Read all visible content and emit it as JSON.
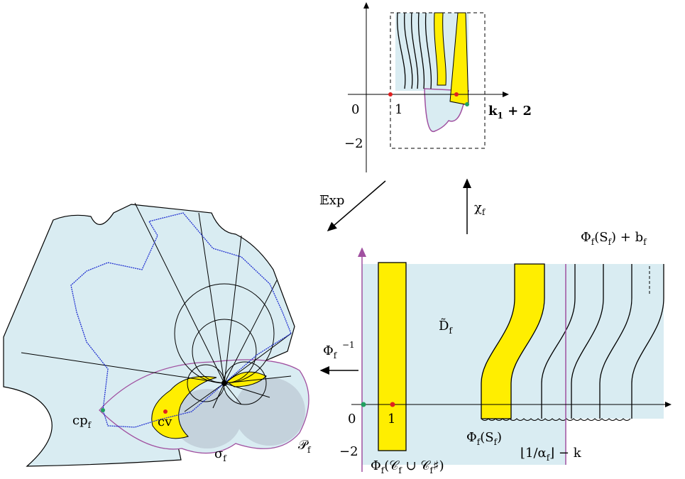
{
  "top_panel": {
    "origin": "0",
    "one": "1",
    "minus_two": "−2",
    "k_label": [
      "k",
      "1",
      " + 2"
    ]
  },
  "arrows": {
    "exp": "𝔼xp",
    "chi": [
      "χ",
      "f"
    ],
    "phi_inv": [
      "Φ",
      "f"
    ],
    "phi_inv_sup": "−1"
  },
  "bottom_panel": {
    "phi_s_plus_b": [
      "Φ",
      "f",
      "(S",
      "f",
      ") + b",
      "f"
    ],
    "domain": [
      "D̃",
      "f"
    ],
    "origin": "0",
    "one": "1",
    "minus_two": "−2",
    "phi_s": [
      "Φ",
      "f",
      "(S",
      "f",
      ")"
    ],
    "floor_label": [
      "⌊1/α",
      "f",
      "⌋ − k"
    ],
    "phi_c": [
      "Φ",
      "f",
      "(𝒞",
      "f",
      " ∪ 𝒞",
      "f",
      "♯)"
    ]
  },
  "left_panel": {
    "cp": [
      "cp",
      "f"
    ],
    "cv": "cv",
    "sigma": [
      "σ",
      "f"
    ],
    "p": [
      "𝒫",
      "f"
    ]
  }
}
